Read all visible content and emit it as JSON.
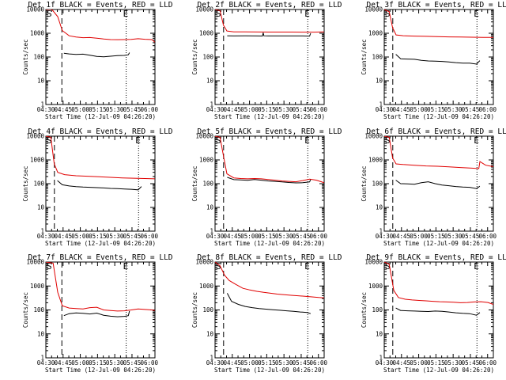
{
  "colors": {
    "events": "#000000",
    "lld": "#e00000",
    "axes": "#000000",
    "background": "#ffffff"
  },
  "chart_data": {
    "type": "line",
    "layout": "3x3 grid of panels",
    "ylabel": "Counts/sec",
    "xlabel": "Start Time (12-Jul-09 04:26:20)",
    "x_ticks": [
      "04:30",
      "04:45",
      "05:00",
      "05:15",
      "05:30",
      "05:45",
      "06:00"
    ],
    "y_ticks": [
      "1",
      "10",
      "100",
      "1000",
      "10000"
    ],
    "y_scale": "log",
    "ylim": [
      1,
      10000
    ],
    "xlim_minutes_from_start": [
      3.67,
      98.67
    ],
    "start_marker": "S",
    "end_marker": "E",
    "panels": [
      {
        "title": "Det 1f BLACK = Events, RED = LLD",
        "dash_x": 17.6,
        "dot_x": 73.6,
        "series": [
          {
            "name": "Events",
            "color": "#000000",
            "x": [
              19.4,
              24,
              30,
              36,
              42,
              48,
              54,
              60,
              66,
              72,
              75.5,
              76.5
            ],
            "values": [
              145,
              135,
              128,
              132,
              118,
              106,
              102,
              108,
              115,
              117,
              124,
              153
            ]
          },
          {
            "name": "LLD",
            "color": "#e00000",
            "x": [
              3.7,
              9,
              14,
              18,
              24,
              30,
              36,
              42,
              48,
              54,
              60,
              66,
              72,
              78,
              84,
              90,
              96,
              98.6
            ],
            "values": [
              10000,
              10000,
              5000,
              1300,
              780,
              690,
              650,
              660,
              620,
              570,
              540,
              535,
              540,
              550,
              590,
              560,
              540,
              420
            ]
          }
        ]
      },
      {
        "title": "Det 2f BLACK = Events, RED = LLD",
        "dash_x": 11.1,
        "dot_x": 84.4,
        "series": [
          {
            "name": "Events",
            "color": "#000000",
            "x": [
              14.3,
              20,
              30,
              40,
              45,
              45.6,
              46.2,
              50,
              60,
              70,
              80,
              86,
              86.9
            ],
            "values": [
              780,
              770,
              775,
              770,
              765,
              1050,
              780,
              770,
              768,
              770,
              768,
              760,
              1000
            ]
          },
          {
            "name": "LLD",
            "color": "#e00000",
            "x": [
              3.7,
              8,
              11,
              14,
              20,
              30,
              40,
              50,
              60,
              70,
              80,
              90,
              98.6
            ],
            "values": [
              10000,
              9000,
              2200,
              1250,
              1150,
              1140,
              1130,
              1120,
              1120,
              1120,
              1110,
              1110,
              1150
            ]
          }
        ]
      },
      {
        "title": "Det 3f BLACK = Events, RED = LLD",
        "dash_x": 11.1,
        "dot_x": 84.4,
        "series": [
          {
            "name": "Events",
            "color": "#000000",
            "x": [
              13.7,
              18,
              24,
              30,
              36,
              42,
              48,
              54,
              60,
              66,
              72,
              78,
              84,
              86.9
            ],
            "values": [
              130,
              84,
              82,
              80,
              72,
              68,
              67,
              65,
              62,
              58,
              55,
              55,
              50,
              70
            ]
          },
          {
            "name": "LLD",
            "color": "#e00000",
            "x": [
              3.7,
              8,
              11,
              14,
              20,
              30,
              40,
              50,
              60,
              70,
              80,
              90,
              98.6
            ],
            "values": [
              10000,
              8000,
              1700,
              850,
              790,
              760,
              740,
              720,
              700,
              690,
              680,
              670,
              670
            ]
          }
        ]
      },
      {
        "title": "Det 4f BLACK = Events, RED = LLD",
        "dash_x": 11.1,
        "dot_x": 84.4,
        "series": [
          {
            "name": "Events",
            "color": "#000000",
            "x": [
              13.7,
              18,
              24,
              30,
              36,
              42,
              48,
              54,
              60,
              66,
              72,
              78,
              84,
              86.9
            ],
            "values": [
              135,
              90,
              80,
              75,
              72,
              70,
              68,
              66,
              63,
              62,
              60,
              58,
              55,
              76
            ]
          },
          {
            "name": "LLD",
            "color": "#e00000",
            "x": [
              3.7,
              8,
              11,
              14,
              20,
              30,
              40,
              50,
              60,
              70,
              80,
              90,
              98.6
            ],
            "values": [
              10000,
              9000,
              680,
              300,
              240,
              215,
              205,
              195,
              185,
              175,
              170,
              165,
              160
            ]
          }
        ]
      },
      {
        "title": "Det 5f BLACK = Events, RED = LLD",
        "dash_x": 11.1,
        "dot_x": 84.4,
        "series": [
          {
            "name": "Events",
            "color": "#000000",
            "x": [
              14.3,
              20,
              26,
              32,
              38,
              44,
              50,
              56,
              62,
              68,
              74,
              80,
              86,
              86.9
            ],
            "values": [
              185,
              148,
              145,
              138,
              150,
              140,
              130,
              125,
              118,
              112,
              108,
              110,
              118,
              150
            ]
          },
          {
            "name": "LLD",
            "color": "#e00000",
            "x": [
              3.7,
              8,
              11,
              14,
              20,
              26,
              32,
              38,
              44,
              50,
              56,
              62,
              68,
              74,
              80,
              86,
              92,
              98.6
            ],
            "values": [
              10000,
              9000,
              1500,
              260,
              175,
              165,
              160,
              165,
              160,
              150,
              140,
              130,
              125,
              120,
              135,
              155,
              140,
              110
            ]
          }
        ]
      },
      {
        "title": "Det 6f BLACK = Events, RED = LLD",
        "dash_x": 11.1,
        "dot_x": 84.4,
        "series": [
          {
            "name": "Events",
            "color": "#000000",
            "x": [
              13.7,
              18,
              24,
              30,
              36,
              42,
              48,
              54,
              60,
              66,
              72,
              78,
              84,
              86.9
            ],
            "values": [
              140,
              100,
              98,
              95,
              110,
              120,
              100,
              88,
              82,
              76,
              72,
              70,
              62,
              78
            ]
          },
          {
            "name": "LLD",
            "color": "#e00000",
            "x": [
              3.7,
              8,
              11,
              14,
              20,
              30,
              40,
              50,
              60,
              70,
              80,
              86,
              87,
              92,
              98.6
            ],
            "values": [
              10000,
              9000,
              1200,
              680,
              640,
              600,
              560,
              540,
              510,
              480,
              450,
              430,
              850,
              600,
              520
            ]
          }
        ]
      },
      {
        "title": "Det 7f BLACK = Events, RED = LLD",
        "dash_x": 17.6,
        "dot_x": 73.6,
        "series": [
          {
            "name": "Events",
            "color": "#000000",
            "x": [
              19.4,
              24,
              30,
              36,
              42,
              48,
              54,
              60,
              66,
              72,
              75.5,
              76.5
            ],
            "values": [
              58,
              70,
              75,
              72,
              68,
              74,
              60,
              55,
              52,
              54,
              58,
              90
            ]
          },
          {
            "name": "LLD",
            "color": "#e00000",
            "x": [
              3.7,
              10,
              14,
              18,
              24,
              30,
              36,
              42,
              48,
              54,
              60,
              66,
              72,
              78,
              84,
              90,
              96,
              98.6
            ],
            "values": [
              10000,
              9000,
              550,
              150,
              120,
              115,
              110,
              125,
              130,
              100,
              95,
              90,
              92,
              100,
              110,
              105,
              100,
              95
            ]
          }
        ]
      },
      {
        "title": "Det 8f BLACK = Events, RED = LLD",
        "dash_x": 11.1,
        "dot_x": 84.4,
        "series": [
          {
            "name": "Events",
            "color": "#000000",
            "x": [
              14.3,
              18,
              24,
              30,
              36,
              42,
              48,
              54,
              60,
              66,
              72,
              78,
              84,
              86.9
            ],
            "values": [
              500,
              230,
              170,
              140,
              125,
              115,
              108,
              102,
              97,
              92,
              88,
              82,
              78,
              70
            ]
          },
          {
            "name": "LLD",
            "color": "#e00000",
            "x": [
              3.7,
              8,
              12,
              16,
              22,
              28,
              34,
              40,
              46,
              52,
              58,
              64,
              70,
              76,
              82,
              88,
              94,
              98.6
            ],
            "values": [
              10000,
              7000,
              2800,
              1700,
              1150,
              800,
              680,
              600,
              540,
              500,
              460,
              430,
              410,
              390,
              370,
              350,
              330,
              320
            ]
          }
        ]
      },
      {
        "title": "Det 9f BLACK = Events, RED = LLD",
        "dash_x": 11.1,
        "dot_x": 84.4,
        "series": [
          {
            "name": "Events",
            "color": "#000000",
            "x": [
              13.7,
              18,
              24,
              30,
              36,
              42,
              48,
              54,
              60,
              66,
              72,
              78,
              84,
              86.9
            ],
            "values": [
              120,
              95,
              92,
              90,
              88,
              86,
              90,
              88,
              82,
              76,
              72,
              70,
              60,
              78
            ]
          },
          {
            "name": "LLD",
            "color": "#e00000",
            "x": [
              3.7,
              8,
              12,
              16,
              22,
              28,
              34,
              40,
              46,
              52,
              58,
              64,
              70,
              76,
              82,
              88,
              94,
              98.6
            ],
            "values": [
              10000,
              8000,
              650,
              330,
              280,
              260,
              250,
              240,
              230,
              220,
              215,
              210,
              200,
              205,
              215,
              220,
              205,
              170
            ]
          }
        ]
      }
    ]
  }
}
